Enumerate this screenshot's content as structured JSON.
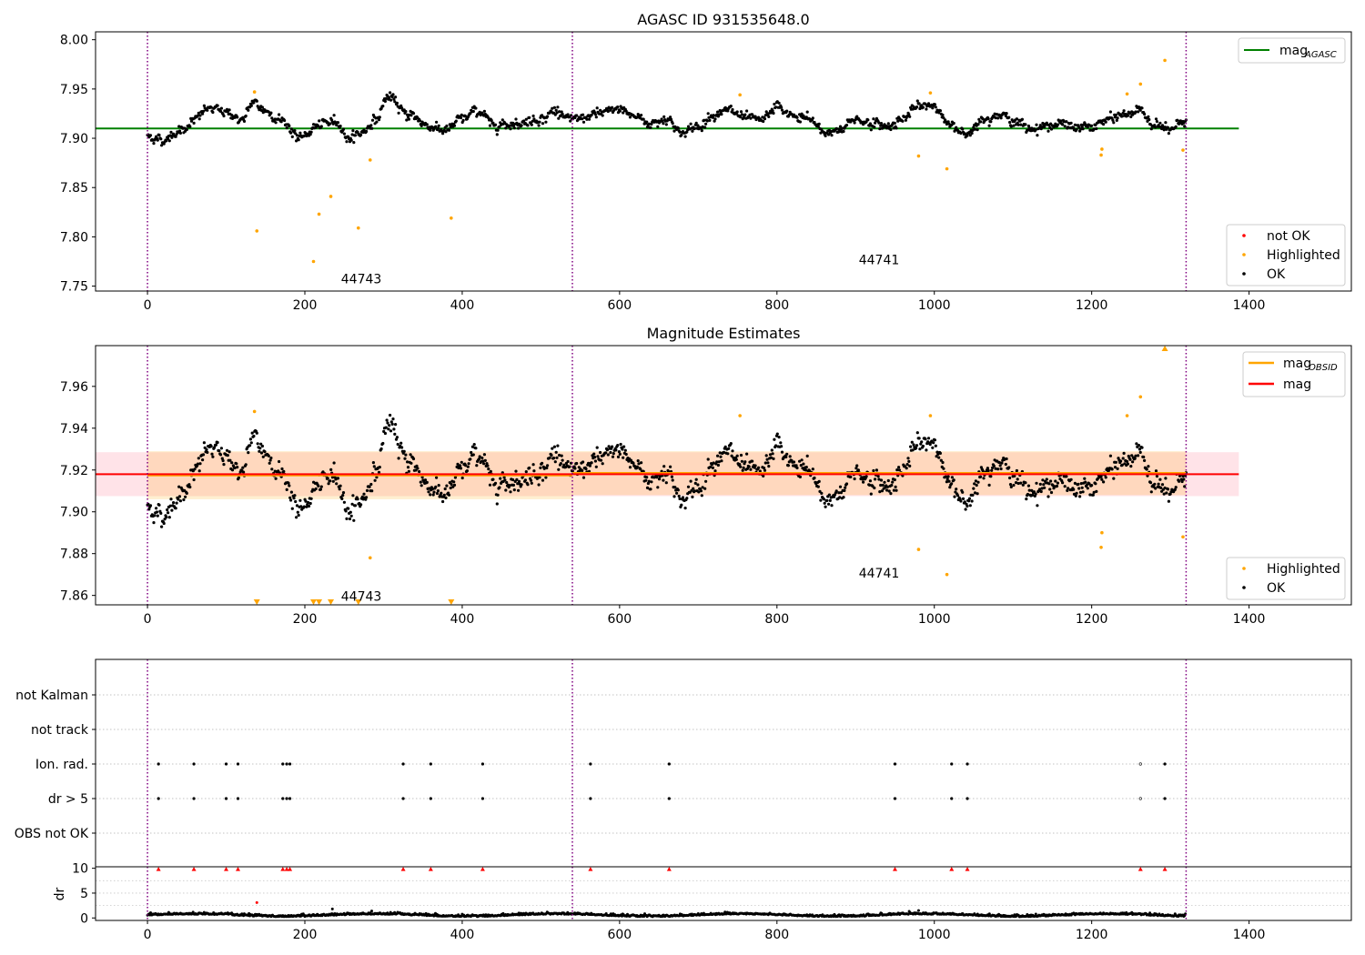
{
  "colors": {
    "ok": "#000000",
    "highlighted": "#ffa500",
    "not_ok": "#ff0000",
    "mag_agasc": "#008000",
    "mag_obsid": "#ffa500",
    "mag": "#ff0000",
    "vline": "#800080",
    "band_total": "#ffc0cb",
    "band_obsid": "#ffa500"
  },
  "chart_data": [
    {
      "type": "scatter",
      "panel": "agasc",
      "title": "AGASC ID 931535648.0",
      "xlim": [
        -66,
        1530
      ],
      "ylim": [
        7.745,
        8.008
      ],
      "xticks": [
        "0",
        "200",
        "400",
        "600",
        "800",
        "1000",
        "1200",
        "1400"
      ],
      "xtick_values": [
        0,
        200,
        400,
        600,
        800,
        1000,
        1200,
        1400
      ],
      "yticks": [
        "7.75",
        "7.80",
        "7.85",
        "7.90",
        "7.95",
        "8.00"
      ],
      "ytick_values": [
        7.75,
        7.8,
        7.85,
        7.9,
        7.95,
        8.0
      ],
      "hline": {
        "y": 7.91,
        "x_range": [
          -66,
          1387
        ],
        "legend": "mag",
        "legend_sub": "AGASC"
      },
      "vlines": [
        0,
        540,
        1320
      ],
      "obsid_labels": [
        {
          "text": "44743",
          "x": 246,
          "y": 7.753
        },
        {
          "text": "44741",
          "x": 904,
          "y": 7.772
        }
      ],
      "legend_lines": [
        {
          "label": "mag",
          "sub": "AGASC",
          "color": "#008000"
        }
      ],
      "legend_markers": [
        {
          "label": "not OK",
          "color": "#ff0000"
        },
        {
          "label": "Highlighted",
          "color": "#ffa500"
        },
        {
          "label": "OK",
          "color": "#000000"
        }
      ],
      "highlighted_points": {
        "x": [
          136,
          139,
          211,
          218,
          233,
          268,
          283,
          386,
          753,
          980,
          995,
          1016,
          1212,
          1213,
          1245,
          1262,
          1293,
          1316
        ],
        "y": [
          7.947,
          7.806,
          7.775,
          7.823,
          7.841,
          7.809,
          7.878,
          7.819,
          7.944,
          7.882,
          7.946,
          7.869,
          7.883,
          7.889,
          7.945,
          7.955,
          7.979,
          7.888
        ]
      },
      "ok_series": {
        "x_start": 0,
        "x_end": 1320,
        "count": 1320,
        "center": 7.911,
        "anchors_x": [
          0,
          20,
          40,
          60,
          75,
          100,
          120,
          135,
          150,
          170,
          195,
          215,
          240,
          255,
          270,
          290,
          305,
          330,
          360,
          380,
          400,
          420,
          440,
          470,
          500,
          520,
          540,
          560,
          580,
          600,
          620,
          640,
          660,
          680,
          700,
          720,
          740,
          760,
          780,
          800,
          820,
          840,
          860,
          880,
          900,
          920,
          940,
          960,
          980,
          1000,
          1020,
          1040,
          1060,
          1080,
          1100,
          1120,
          1140,
          1160,
          1180,
          1200,
          1220,
          1240,
          1260,
          1280,
          1300,
          1320
        ],
        "anchors_y": [
          7.902,
          7.898,
          7.907,
          7.918,
          7.93,
          7.927,
          7.918,
          7.936,
          7.928,
          7.918,
          7.9,
          7.912,
          7.918,
          7.9,
          7.905,
          7.918,
          7.942,
          7.925,
          7.912,
          7.908,
          7.92,
          7.928,
          7.914,
          7.915,
          7.92,
          7.928,
          7.918,
          7.922,
          7.926,
          7.93,
          7.922,
          7.915,
          7.92,
          7.905,
          7.912,
          7.925,
          7.928,
          7.92,
          7.918,
          7.932,
          7.922,
          7.92,
          7.906,
          7.908,
          7.92,
          7.915,
          7.912,
          7.92,
          7.932,
          7.934,
          7.912,
          7.905,
          7.918,
          7.925,
          7.918,
          7.91,
          7.912,
          7.915,
          7.91,
          7.912,
          7.918,
          7.924,
          7.928,
          7.915,
          7.908,
          7.918
        ],
        "noise": 0.004
      }
    },
    {
      "type": "scatter",
      "panel": "estimates",
      "title": "Magnitude Estimates",
      "xlim": [
        -66,
        1530
      ],
      "ylim": [
        7.8555,
        7.9795
      ],
      "xticks": [
        "0",
        "200",
        "400",
        "600",
        "800",
        "1000",
        "1200",
        "1400"
      ],
      "xtick_values": [
        0,
        200,
        400,
        600,
        800,
        1000,
        1200,
        1400
      ],
      "yticks": [
        "7.86",
        "7.88",
        "7.90",
        "7.92",
        "7.94",
        "7.96"
      ],
      "ytick_values": [
        7.86,
        7.88,
        7.9,
        7.92,
        7.94,
        7.96
      ],
      "mag_line": {
        "y": 7.918,
        "band": [
          7.9075,
          7.9285
        ],
        "x_range": [
          -66,
          1387
        ]
      },
      "obsid_segments": [
        {
          "x0": 0,
          "x1": 540,
          "y": 7.9175,
          "band": [
            7.906,
            7.929
          ]
        },
        {
          "x0": 540,
          "x1": 1320,
          "y": 7.9185,
          "band": [
            7.908,
            7.929
          ]
        }
      ],
      "vlines": [
        0,
        540,
        1320
      ],
      "obsid_labels": [
        {
          "text": "44743",
          "x": 246,
          "y": 7.8575
        },
        {
          "text": "44741",
          "x": 904,
          "y": 7.8685
        }
      ],
      "legend_lines": [
        {
          "label": "mag",
          "sub": "OBSID",
          "color": "#ffa500"
        },
        {
          "label": "mag",
          "sub": "",
          "color": "#ff0000"
        }
      ],
      "legend_markers": [
        {
          "label": "Highlighted",
          "color": "#ffa500"
        },
        {
          "label": "OK",
          "color": "#000000"
        }
      ],
      "highlighted_points": {
        "x": [
          136,
          753,
          980,
          995,
          1016,
          1212,
          1213,
          1245,
          1262,
          1316,
          283
        ],
        "y": [
          7.948,
          7.946,
          7.882,
          7.946,
          7.87,
          7.883,
          7.89,
          7.946,
          7.955,
          7.888,
          7.878
        ]
      },
      "clipped_low": [
        139,
        211,
        218,
        233,
        268,
        386
      ],
      "clipped_high": [
        1293
      ]
    },
    {
      "type": "scatter",
      "panel": "flags",
      "rows": [
        "not Kalman",
        "not track",
        "Ion. rad.",
        "dr > 5",
        "OBS not OK"
      ],
      "xlim": [
        -66,
        1530
      ],
      "vlines": [
        0,
        540,
        1320
      ],
      "flag_x": [
        14,
        59,
        100,
        115,
        172,
        177,
        181,
        325,
        360,
        426,
        563,
        663,
        950,
        1022,
        1042,
        1262,
        1293
      ],
      "hollow_x": [
        1262
      ]
    },
    {
      "type": "scatter",
      "panel": "dr",
      "ylabel": "dr",
      "xlim": [
        -66,
        1530
      ],
      "ylim": [
        -0.5,
        10.3
      ],
      "xticks": [
        "0",
        "200",
        "400",
        "600",
        "800",
        "1000",
        "1200",
        "1400"
      ],
      "xtick_values": [
        0,
        200,
        400,
        600,
        800,
        1000,
        1200,
        1400
      ],
      "yticks": [
        "0",
        "5",
        "10"
      ],
      "ytick_values": [
        0,
        5,
        10
      ],
      "vlines": [
        0,
        540,
        1320
      ],
      "capped_x": [
        14,
        59,
        100,
        115,
        172,
        177,
        181,
        325,
        360,
        426,
        563,
        663,
        950,
        1022,
        1042,
        1262,
        1293
      ],
      "extra_points": [
        {
          "x": 139,
          "y": 3.1,
          "color": "#ff0000"
        },
        {
          "x": 235,
          "y": 1.8,
          "color": "#000000"
        },
        {
          "x": 285,
          "y": 1.4,
          "color": "#000000"
        },
        {
          "x": 980,
          "y": 1.5,
          "color": "#000000"
        }
      ]
    }
  ]
}
